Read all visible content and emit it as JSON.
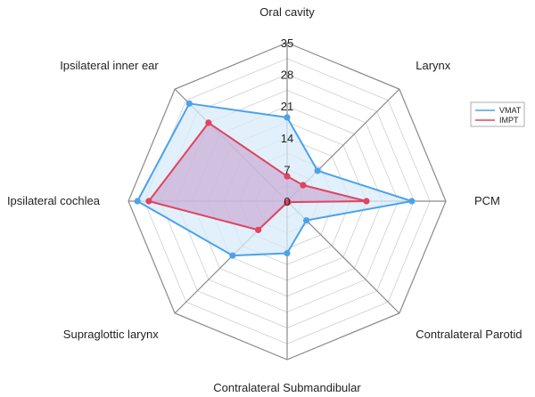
{
  "chart_data": {
    "type": "radar",
    "title": "",
    "axes": [
      "Oral cavity",
      "Larynx",
      "PCM",
      "Contralateral Parotid",
      "Contralateral Submandibular",
      "Supraglottic larynx",
      "Ipsilateral cochlea",
      "Ipsilateral inner ear"
    ],
    "ticks": [
      "0",
      "7",
      "14",
      "21",
      "28",
      "35"
    ],
    "tick_values": [
      0,
      7,
      14,
      21,
      28,
      35
    ],
    "rlim": [
      0,
      35
    ],
    "grid": true,
    "legend_position": "right",
    "series": [
      {
        "name": "VMAT",
        "color": "#4aa3ea",
        "fill": "#d8ebf9",
        "values": [
          18.5,
          9.5,
          27.5,
          6.0,
          11.5,
          17.0,
          33.0,
          30.5
        ]
      },
      {
        "name": "IMPT",
        "color": "#e0445f",
        "fill": "#c7a0cf",
        "values": [
          5.5,
          5.0,
          17.5,
          0.3,
          0.3,
          9.0,
          30.5,
          24.5
        ]
      }
    ]
  }
}
